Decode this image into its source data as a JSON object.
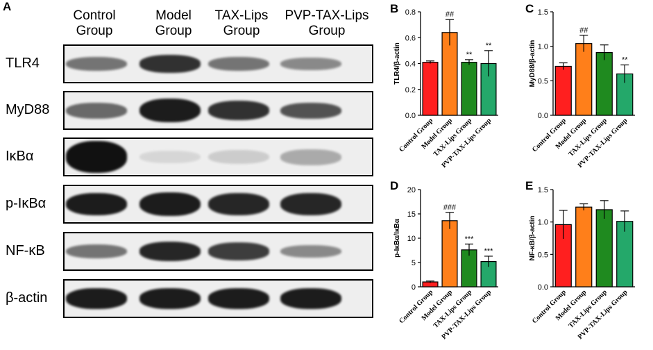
{
  "panel_a": {
    "letter": "A",
    "lanes": [
      {
        "line1": "Control",
        "line2": "Group"
      },
      {
        "line1": "Model",
        "line2": "Group"
      },
      {
        "line1": "TAX-Lips",
        "line2": "Group"
      },
      {
        "line1": "PVP-TAX-Lips",
        "line2": "Group"
      }
    ],
    "blots": [
      {
        "label": "TLR4",
        "intensity": [
          0.55,
          0.85,
          0.55,
          0.45
        ],
        "thickness": [
          0.45,
          0.55,
          0.45,
          0.4
        ]
      },
      {
        "label": "MyD88",
        "intensity": [
          0.6,
          0.95,
          0.85,
          0.7
        ],
        "thickness": [
          0.5,
          0.75,
          0.6,
          0.5
        ]
      },
      {
        "label": "IκBα",
        "intensity": [
          1.0,
          0.1,
          0.15,
          0.3
        ],
        "thickness": [
          1.0,
          0.4,
          0.45,
          0.5
        ]
      },
      {
        "label": "p-IκBα",
        "intensity": [
          0.95,
          0.95,
          0.9,
          0.9
        ],
        "thickness": [
          0.7,
          0.75,
          0.7,
          0.7
        ]
      },
      {
        "label": "NF-κB",
        "intensity": [
          0.55,
          0.9,
          0.8,
          0.45
        ],
        "thickness": [
          0.45,
          0.6,
          0.55,
          0.4
        ]
      },
      {
        "label": "β-actin",
        "intensity": [
          0.95,
          0.95,
          0.95,
          0.95
        ],
        "thickness": [
          0.65,
          0.65,
          0.65,
          0.65
        ]
      }
    ]
  },
  "chart_data": [
    {
      "panel": "B",
      "type": "bar",
      "categories": [
        "Control Group",
        "Model Group",
        "TAX-Lips Group",
        "PVP-TAX-Lips Group"
      ],
      "values": [
        0.41,
        0.64,
        0.41,
        0.4
      ],
      "errors": [
        0.01,
        0.1,
        0.02,
        0.1
      ],
      "annotations": [
        "",
        "##",
        "**",
        "**"
      ],
      "ylabel": "TLR4/β-actin",
      "ylim": [
        0,
        0.8
      ],
      "yticks": [
        "0.0",
        "0.2",
        "0.4",
        "0.6",
        "0.8"
      ]
    },
    {
      "panel": "C",
      "type": "bar",
      "categories": [
        "Control Group",
        "Model Group",
        "TAX-Lips Group",
        "PVP-TAX-Lips Group"
      ],
      "values": [
        0.71,
        1.04,
        0.91,
        0.6
      ],
      "errors": [
        0.05,
        0.12,
        0.11,
        0.13
      ],
      "annotations": [
        "",
        "##",
        "",
        "**"
      ],
      "ylabel": "MyD88/β-actin",
      "ylim": [
        0,
        1.5
      ],
      "yticks": [
        "0.0",
        "0.5",
        "1.0",
        "1.5"
      ]
    },
    {
      "panel": "D",
      "type": "bar",
      "categories": [
        "Control Group",
        "Model Group",
        "TAX-Lips Group",
        "PVP-TAX-Lips Group"
      ],
      "values": [
        1.0,
        13.6,
        7.6,
        5.2
      ],
      "errors": [
        0.2,
        1.7,
        1.2,
        1.1
      ],
      "annotations": [
        "",
        "###",
        "***",
        "***"
      ],
      "ylabel": "p-IκBα/IκBα",
      "ylim": [
        0,
        20
      ],
      "yticks": [
        "0",
        "5",
        "10",
        "15",
        "20"
      ]
    },
    {
      "panel": "E",
      "type": "bar",
      "categories": [
        "Control Group",
        "Model Group",
        "TAX-Lips Group",
        "PVP-TAX-Lips Group"
      ],
      "values": [
        0.96,
        1.23,
        1.19,
        1.01
      ],
      "errors": [
        0.22,
        0.05,
        0.14,
        0.16
      ],
      "annotations": [
        "",
        "",
        "",
        ""
      ],
      "ylabel": "NF-κB/β-actin",
      "ylim": [
        0,
        1.5
      ],
      "yticks": [
        "0.0",
        "0.5",
        "1.0",
        "1.5"
      ]
    }
  ],
  "colors": {
    "control": "#ff1f1f",
    "model": "#ff7f1a",
    "tax": "#1f8a1f",
    "pvp": "#24a86a"
  }
}
